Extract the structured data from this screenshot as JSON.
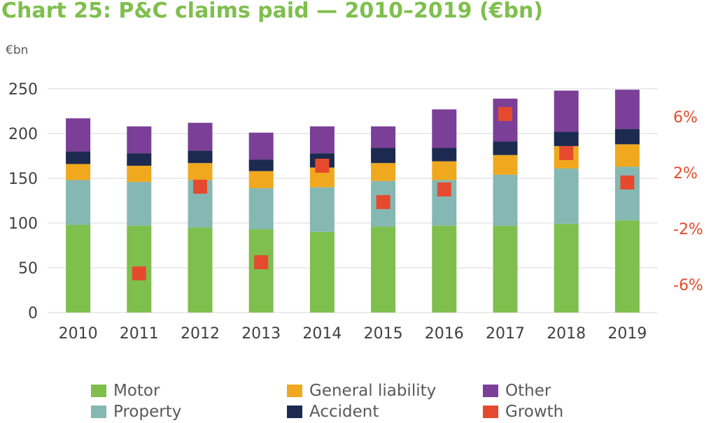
{
  "title": "Chart 25: P&C claims paid — 2010–2019 (€bn)",
  "unit_label": "€bn",
  "legend": [
    {
      "label": "Motor",
      "color": "#7fbf4d"
    },
    {
      "label": "General liability",
      "color": "#f0a91e"
    },
    {
      "label": "Other",
      "color": "#7b3f98"
    },
    {
      "label": "Property",
      "color": "#85b8b2"
    },
    {
      "label": "Accident",
      "color": "#1c2a4f"
    },
    {
      "label": "Growth",
      "color": "#e64a2e"
    }
  ],
  "chart_data": {
    "type": "bar",
    "stacked": true,
    "categories": [
      "2010",
      "2011",
      "2012",
      "2013",
      "2014",
      "2015",
      "2016",
      "2017",
      "2018",
      "2019"
    ],
    "ylim": [
      0,
      250
    ],
    "yticks": [
      "0",
      "50",
      "100",
      "150",
      "200",
      "250"
    ],
    "y2lim": [
      -8,
      8
    ],
    "y2ticks": [
      "-6%",
      "-2%",
      "2%",
      "6%"
    ],
    "y2tick_values": [
      -6,
      -2,
      2,
      6
    ],
    "grid": true,
    "legend_position": "bottom",
    "series": [
      {
        "name": "Motor",
        "color": "#7fbf4d",
        "values": [
          98,
          97,
          95,
          93,
          90,
          96,
          97,
          97,
          99,
          103
        ]
      },
      {
        "name": "Property",
        "color": "#85b8b2",
        "values": [
          50,
          49,
          53,
          46,
          50,
          51,
          51,
          57,
          62,
          60
        ]
      },
      {
        "name": "General liability",
        "color": "#f0a91e",
        "values": [
          18,
          18,
          19,
          19,
          22,
          20,
          21,
          22,
          25,
          25
        ]
      },
      {
        "name": "Accident",
        "color": "#1c2a4f",
        "values": [
          14,
          14,
          14,
          13,
          16,
          17,
          15,
          15,
          16,
          17
        ]
      },
      {
        "name": "Other",
        "color": "#7b3f98",
        "values": [
          37,
          30,
          31,
          30,
          30,
          24,
          43,
          48,
          46,
          44
        ]
      }
    ],
    "growth": {
      "name": "Growth",
      "color": "#e64a2e",
      "values": [
        null,
        -5.2,
        1.0,
        -4.4,
        2.5,
        -0.1,
        0.8,
        6.2,
        3.4,
        1.3
      ]
    }
  }
}
